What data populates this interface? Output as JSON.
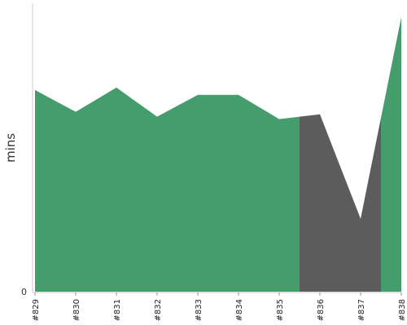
{
  "chart_data": {
    "type": "area",
    "categories": [
      "#829",
      "#830",
      "#831",
      "#832",
      "#833",
      "#834",
      "#835",
      "#836",
      "#837",
      "#838"
    ],
    "values": [
      83,
      74,
      84,
      72,
      81,
      81,
      71,
      73,
      30,
      113
    ],
    "status": [
      "success",
      "success",
      "success",
      "success",
      "success",
      "success",
      "success",
      "fail",
      "fail",
      "success"
    ],
    "colors": {
      "success": "#459c6c",
      "fail": "#5c5c5c"
    },
    "ylabel": "mins",
    "xlabel": "",
    "y_tick_labels": [
      "0"
    ],
    "ylim": [
      0,
      113
    ],
    "grid": false,
    "legend": "none"
  }
}
